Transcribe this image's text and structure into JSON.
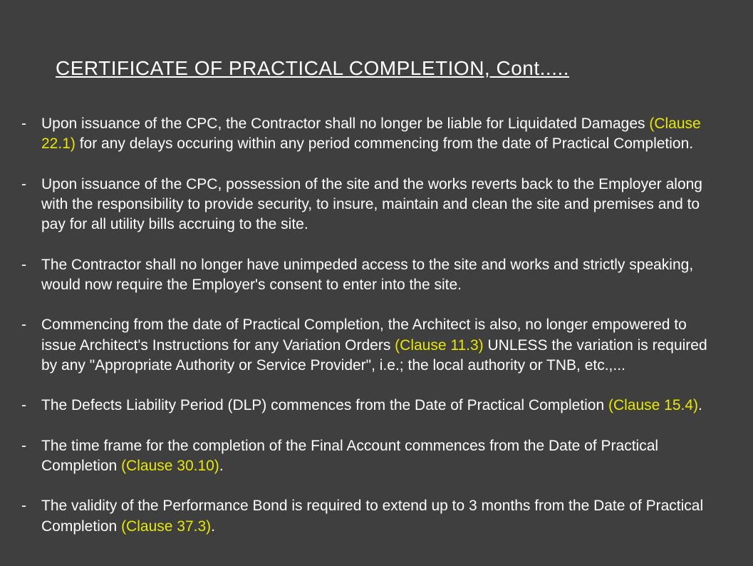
{
  "title": " CERTIFICATE OF PRACTICAL COMPLETION, Cont.....",
  "colors": {
    "background": "#3f3f3f",
    "text": "#ffffff",
    "highlight": "#e8e800"
  },
  "typography": {
    "title_fontsize": 28,
    "body_fontsize": 21,
    "font_family": "Arial"
  },
  "bullets": [
    {
      "pre": "Upon issuance of the CPC, the Contractor shall no longer be liable for Liquidated Damages ",
      "clause": "(Clause 22.1)",
      "post": " for any delays occuring within any period commencing from the date of Practical Completion."
    },
    {
      "pre": "Upon issuance of the CPC, possession of the site and the works reverts back to the Employer along with the responsibility to provide security, to insure, maintain and clean the site and premises and to pay for all utility bills accruing to the site.",
      "clause": "",
      "post": ""
    },
    {
      "pre": "The Contractor shall no longer have unimpeded access to the site and works and strictly speaking, would now require the Employer's consent to enter into the site.",
      "clause": "",
      "post": ""
    },
    {
      "pre": "Commencing from the date of Practical Completion, the Architect is also, no longer empowered to issue Architect's Instructions for any Variation Orders ",
      "clause": "(Clause 11.3)",
      "post": " UNLESS the variation is required by any \"Appropriate Authority or Service Provider\", i.e.; the local authority or TNB, etc.,..."
    },
    {
      "pre": "The Defects Liability Period (DLP) commences from the Date of Practical Completion ",
      "clause": "(Clause 15.4)",
      "post": "."
    },
    {
      "pre": "The time frame for the completion of the Final Account commences from the Date of Practical Completion ",
      "clause": "(Clause 30.10)",
      "post": "."
    },
    {
      "pre": "The validity of the Performance Bond is required to extend up to 3 months from the Date of Practical Completion ",
      "clause": "(Clause 37.3)",
      "post": "."
    }
  ]
}
